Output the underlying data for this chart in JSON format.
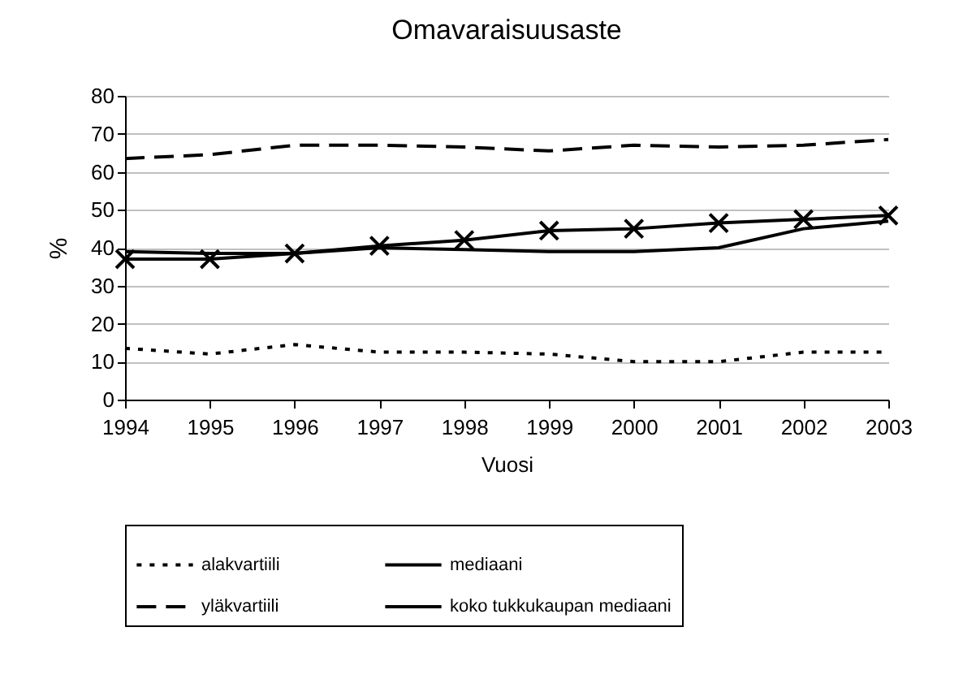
{
  "chart_data": {
    "type": "line",
    "title": "Omavaraisuusaste",
    "xlabel": "Vuosi",
    "ylabel": "%",
    "categories": [
      "1994",
      "1995",
      "1996",
      "1997",
      "1998",
      "1999",
      "2000",
      "2001",
      "2002",
      "2003"
    ],
    "series": [
      {
        "name": "alakvartiili",
        "color": "#000000",
        "line_style": "dotted",
        "marker": "none",
        "values": [
          13.5,
          12,
          14.5,
          12.5,
          12.5,
          12,
          10,
          10,
          12.5,
          12.5
        ]
      },
      {
        "name": "mediaani",
        "color": "#000000",
        "line_style": "solid",
        "marker": "none",
        "values": [
          39,
          38.5,
          38.5,
          40,
          39.5,
          39,
          39,
          40,
          45,
          47
        ]
      },
      {
        "name": "yläkvartiili",
        "color": "#000000",
        "line_style": "dashed",
        "marker": "none",
        "values": [
          63.5,
          64.5,
          67,
          67,
          66.5,
          65.5,
          67,
          66.5,
          67,
          68.5
        ]
      },
      {
        "name": "koko tukkukaupan mediaani",
        "color": "#000000",
        "line_style": "solid",
        "marker": "cross",
        "values": [
          37,
          37,
          38.5,
          40.5,
          42,
          44.5,
          45,
          46.5,
          47.5,
          48.5
        ]
      }
    ],
    "ylim": [
      0,
      80
    ],
    "yticks": [
      0,
      10,
      20,
      30,
      40,
      50,
      60,
      70,
      80
    ],
    "grid": "y",
    "legend": "bottom"
  }
}
